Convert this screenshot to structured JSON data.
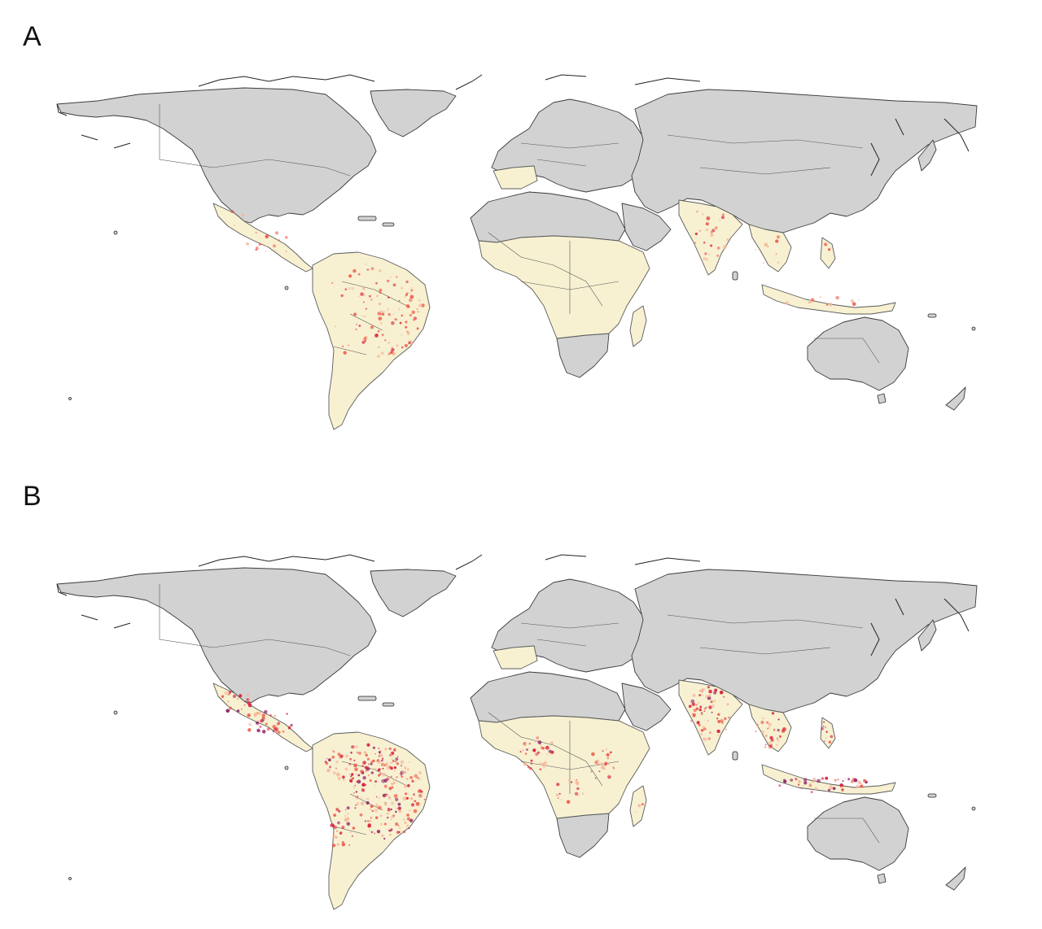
{
  "panels": [
    {
      "label": "A",
      "risk_level": 0.45
    },
    {
      "label": "B",
      "risk_level": 0.85
    }
  ],
  "colors": {
    "background": "#ffffff",
    "land_no_risk": "#d2d2d2",
    "land_endemic": "#f7f1d2",
    "risk_low": "#f6b89a",
    "risk_mid": "#ef5a4c",
    "risk_high": "#d8203c",
    "risk_max": "#8e1f6a"
  },
  "regions": [
    "world-map"
  ]
}
